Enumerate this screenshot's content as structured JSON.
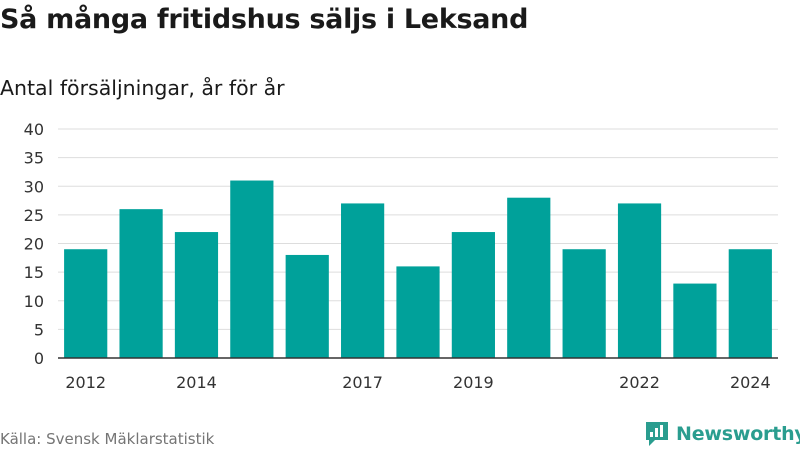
{
  "title": "Så många fritidshus säljs i Leksand",
  "subtitle": "Antal försäljningar, år för år",
  "source": "Källa: Svensk Mäklarstatistik",
  "brand": {
    "name": "Newsworthy",
    "icon": "newsworthy-logo-icon",
    "color": "#2a9d8f"
  },
  "colors": {
    "bar": "#00a19a",
    "grid": "#dddddd",
    "axis": "#333333"
  },
  "chart_data": {
    "type": "bar",
    "categories": [
      "2012",
      "2013",
      "2014",
      "2015",
      "2016",
      "2017",
      "2018",
      "2019",
      "2020",
      "2021",
      "2022",
      "2023",
      "2024"
    ],
    "values": [
      19,
      26,
      22,
      31,
      18,
      27,
      16,
      22,
      28,
      19,
      27,
      13,
      19
    ],
    "x_tick_labels": [
      "2012",
      "",
      "2014",
      "",
      "",
      "2017",
      "",
      "2019",
      "",
      "",
      "2022",
      "",
      "2024"
    ],
    "y_ticks": [
      0,
      5,
      10,
      15,
      20,
      25,
      30,
      35,
      40
    ],
    "ylim": [
      0,
      40
    ],
    "grid": true,
    "xlabel": "",
    "ylabel": ""
  }
}
